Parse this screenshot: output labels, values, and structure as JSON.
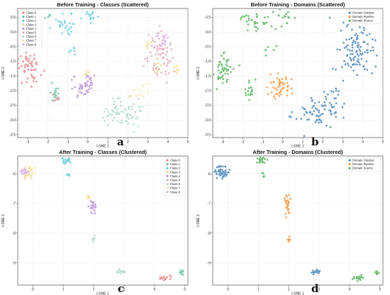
{
  "colors": {
    "classes": [
      "#e8787a",
      "#4fbfa0",
      "#52c7d6",
      "#f3d27a",
      "#b98bd6",
      "#e3a3b3",
      "#a7d8c8",
      "#f7e28f",
      "#cfa6e6"
    ],
    "domains": [
      "#3a7eb5",
      "#f28e2b",
      "#4caf50"
    ]
  },
  "figure_labels": [
    "a",
    "b",
    "c",
    "d"
  ],
  "chart_data": [
    {
      "type": "scatter",
      "title": "Before Training - Classes (Scattered)",
      "xlabel": "t-SNE 1",
      "ylabel": "t-SNE 2",
      "xlim": [
        -3.5,
        5
      ],
      "ylim": [
        -3.6,
        0.8
      ],
      "xticks": [
        -3,
        -2,
        -1,
        0,
        1,
        2,
        3,
        4,
        5
      ],
      "yticks": [
        0.5,
        0.0,
        -0.5,
        -1.0,
        -1.5,
        -2.0,
        -2.5,
        -3.0,
        -3.5
      ],
      "ytick_labels": [
        "0.5",
        "0.0",
        "-0.5",
        "-1.0",
        "-1.5",
        "-2.0",
        "-2.5",
        "-3.0",
        "-3.5"
      ],
      "grid": true,
      "legend_position": "top-left",
      "palette": "classes",
      "series": [
        {
          "name": "Class 0",
          "clusters": [
            {
              "cx": -2.9,
              "cy": -1.25,
              "sx": 0.28,
              "sy": 0.28,
              "n": 55
            },
            {
              "cx": -1.6,
              "cy": -2.2,
              "sx": 0.08,
              "sy": 0.15,
              "n": 8
            }
          ]
        },
        {
          "name": "Class 1",
          "clusters": [
            {
              "cx": -1.65,
              "cy": -2.0,
              "sx": 0.12,
              "sy": 0.18,
              "n": 15
            },
            {
              "cx": -2.0,
              "cy": 0.55,
              "sx": 0.1,
              "sy": 0.06,
              "n": 5
            }
          ]
        },
        {
          "name": "Class 2",
          "clusters": [
            {
              "cx": -1.1,
              "cy": 0.3,
              "sx": 0.35,
              "sy": 0.15,
              "n": 28
            },
            {
              "cx": 0.1,
              "cy": 0.55,
              "sx": 0.2,
              "sy": 0.1,
              "n": 14
            },
            {
              "cx": -0.75,
              "cy": -0.55,
              "sx": 0.15,
              "sy": 0.12,
              "n": 6
            }
          ]
        },
        {
          "name": "Class 3",
          "clusters": [
            {
              "cx": -0.05,
              "cy": -1.4,
              "sx": 0.08,
              "sy": 0.06,
              "n": 5
            },
            {
              "cx": 3.0,
              "cy": -0.45,
              "sx": 0.1,
              "sy": 0.12,
              "n": 6
            },
            {
              "cx": 3.5,
              "cy": -1.2,
              "sx": 0.15,
              "sy": 0.15,
              "n": 9
            },
            {
              "cx": 4.45,
              "cy": -1.3,
              "sx": 0.12,
              "sy": 0.1,
              "n": 6
            }
          ]
        },
        {
          "name": "Class 4",
          "clusters": [
            {
              "cx": -0.2,
              "cy": -1.85,
              "sx": 0.25,
              "sy": 0.22,
              "n": 45
            },
            {
              "cx": 0.2,
              "cy": -1.6,
              "sx": 0.1,
              "sy": 0.12,
              "n": 6
            }
          ]
        },
        {
          "name": "Class 5",
          "clusters": [
            {
              "cx": 3.6,
              "cy": -0.75,
              "sx": 0.35,
              "sy": 0.4,
              "n": 70
            }
          ]
        },
        {
          "name": "Class 6",
          "clusters": [
            {
              "cx": 1.7,
              "cy": -2.75,
              "sx": 0.5,
              "sy": 0.25,
              "n": 75
            }
          ]
        },
        {
          "name": "Class 7",
          "clusters": [
            {
              "cx": 2.3,
              "cy": -2.2,
              "sx": 0.1,
              "sy": 0.1,
              "n": 6
            },
            {
              "cx": 2.8,
              "cy": -1.9,
              "sx": 0.12,
              "sy": 0.1,
              "n": 6
            }
          ]
        },
        {
          "name": "Class 8",
          "clusters": [
            {
              "cx": 3.8,
              "cy": -0.2,
              "sx": 0.2,
              "sy": 0.2,
              "n": 15
            }
          ]
        }
      ]
    },
    {
      "type": "scatter",
      "title": "Before Training - Domains (Scattered)",
      "xlabel": "t-SNE 1",
      "ylabel": "t-SNE 2",
      "xlim": [
        -3.5,
        5
      ],
      "ylim": [
        -3.6,
        0.8
      ],
      "xticks": [
        -3,
        -2,
        -1,
        0,
        1,
        2,
        3,
        4,
        5
      ],
      "yticks": [
        0.5,
        0.0,
        -0.5,
        -1.0,
        -1.5,
        -2.0,
        -2.5,
        -3.0,
        -3.5
      ],
      "ytick_labels": [
        "0.5",
        "0.0",
        "-0.5",
        "-1.0",
        "-1.5",
        "-2.0",
        "-2.5",
        "-3.0",
        "-3.5"
      ],
      "grid": true,
      "legend_position": "top-right",
      "palette": "domains",
      "series": [
        {
          "name": "Domain Outdoor",
          "clusters": [
            {
              "cx": 3.6,
              "cy": -0.7,
              "sx": 0.45,
              "sy": 0.45,
              "n": 110
            },
            {
              "cx": 1.7,
              "cy": -2.75,
              "sx": 0.5,
              "sy": 0.25,
              "n": 75
            },
            {
              "cx": 2.5,
              "cy": -2.1,
              "sx": 0.3,
              "sy": 0.15,
              "n": 12
            }
          ]
        },
        {
          "name": "Domain Pipeline",
          "clusters": [
            {
              "cx": -0.1,
              "cy": -1.8,
              "sx": 0.3,
              "sy": 0.3,
              "n": 50
            }
          ]
        },
        {
          "name": "Domain Source",
          "clusters": [
            {
              "cx": -2.9,
              "cy": -1.25,
              "sx": 0.28,
              "sy": 0.28,
              "n": 50
            },
            {
              "cx": -1.65,
              "cy": -2.0,
              "sx": 0.12,
              "sy": 0.18,
              "n": 18
            },
            {
              "cx": -1.2,
              "cy": 0.3,
              "sx": 0.4,
              "sy": 0.15,
              "n": 30
            },
            {
              "cx": 0.1,
              "cy": 0.5,
              "sx": 0.2,
              "sy": 0.12,
              "n": 15
            },
            {
              "cx": -1.9,
              "cy": 0.55,
              "sx": 0.1,
              "sy": 0.06,
              "n": 6
            },
            {
              "cx": -0.75,
              "cy": -0.55,
              "sx": 0.15,
              "sy": 0.12,
              "n": 6
            }
          ]
        }
      ]
    },
    {
      "type": "scatter",
      "title": "After Training - Classes (Clustered)",
      "xlabel": "t-SNE 1",
      "ylabel": "t-SNE 2",
      "xlim": [
        -0.5,
        5.1
      ],
      "ylim": [
        -9.75,
        -5.4
      ],
      "xticks": [
        0,
        1,
        2,
        3,
        4,
        5
      ],
      "yticks": [
        -6,
        -7,
        -8,
        -9
      ],
      "ytick_labels": [
        "-6",
        "-7",
        "-8",
        "-9"
      ],
      "grid": true,
      "legend_position": "top-right",
      "palette": "classes",
      "series": [
        {
          "name": "Class 0",
          "clusters": [
            {
              "cx": 4.3,
              "cy": -9.5,
              "sx": 0.1,
              "sy": 0.04,
              "n": 25
            }
          ]
        },
        {
          "name": "Class 1",
          "clusters": [
            {
              "cx": 4.9,
              "cy": -9.33,
              "sx": 0.04,
              "sy": 0.04,
              "n": 10
            }
          ]
        },
        {
          "name": "Class 2",
          "clusters": [
            {
              "cx": 1.1,
              "cy": -5.55,
              "sx": 0.08,
              "sy": 0.06,
              "n": 22
            },
            {
              "cx": 1.15,
              "cy": -6.0,
              "sx": 0.03,
              "sy": 0.05,
              "n": 6
            }
          ]
        },
        {
          "name": "Class 3",
          "clusters": [
            {
              "cx": -0.2,
              "cy": -6.1,
              "sx": 0.08,
              "sy": 0.05,
              "n": 12
            },
            {
              "cx": 1.85,
              "cy": -6.8,
              "sx": 0.04,
              "sy": 0.04,
              "n": 6
            }
          ]
        },
        {
          "name": "Class 4",
          "clusters": [
            {
              "cx": 1.95,
              "cy": -7.1,
              "sx": 0.05,
              "sy": 0.1,
              "n": 18
            }
          ]
        },
        {
          "name": "Class 5",
          "clusters": [
            {
              "cx": -0.25,
              "cy": -5.9,
              "sx": 0.08,
              "sy": 0.06,
              "n": 14
            }
          ]
        },
        {
          "name": "Class 6",
          "clusters": [
            {
              "cx": 2.9,
              "cy": -9.3,
              "sx": 0.1,
              "sy": 0.04,
              "n": 22
            },
            {
              "cx": 2.0,
              "cy": -8.2,
              "sx": 0.03,
              "sy": 0.04,
              "n": 7
            }
          ]
        },
        {
          "name": "Class 7",
          "clusters": [
            {
              "cx": -0.05,
              "cy": -5.85,
              "sx": 0.08,
              "sy": 0.08,
              "n": 14
            }
          ]
        },
        {
          "name": "Class 8",
          "clusters": [
            {
              "cx": -0.3,
              "cy": -5.95,
              "sx": 0.08,
              "sy": 0.06,
              "n": 14
            },
            {
              "cx": 2.0,
              "cy": -7.3,
              "sx": 0.04,
              "sy": 0.08,
              "n": 8
            }
          ]
        }
      ]
    },
    {
      "type": "scatter",
      "title": "After Training - Domains (Clustered)",
      "xlabel": "t-SNE 1",
      "ylabel": "t-SNE 2",
      "xlim": [
        -0.5,
        5.1
      ],
      "ylim": [
        -9.75,
        -5.4
      ],
      "xticks": [
        0,
        1,
        2,
        3,
        4,
        5
      ],
      "yticks": [
        -6,
        -7,
        -8,
        -9
      ],
      "ytick_labels": [
        "-6",
        "-7",
        "-8",
        "-9"
      ],
      "grid": true,
      "legend_position": "top-right",
      "palette": "domains",
      "series": [
        {
          "name": "Domain Outdoor",
          "clusters": [
            {
              "cx": -0.2,
              "cy": -5.95,
              "sx": 0.12,
              "sy": 0.1,
              "n": 55
            },
            {
              "cx": 2.9,
              "cy": -9.3,
              "sx": 0.1,
              "sy": 0.04,
              "n": 22
            }
          ]
        },
        {
          "name": "Domain Pipeline",
          "clusters": [
            {
              "cx": 1.95,
              "cy": -7.0,
              "sx": 0.05,
              "sy": 0.18,
              "n": 28
            },
            {
              "cx": 2.0,
              "cy": -8.2,
              "sx": 0.03,
              "sy": 0.04,
              "n": 7
            }
          ]
        },
        {
          "name": "Domain Source",
          "clusters": [
            {
              "cx": 1.1,
              "cy": -5.55,
              "sx": 0.08,
              "sy": 0.06,
              "n": 22
            },
            {
              "cx": 1.15,
              "cy": -6.0,
              "sx": 0.03,
              "sy": 0.05,
              "n": 6
            },
            {
              "cx": 4.3,
              "cy": -9.5,
              "sx": 0.1,
              "sy": 0.04,
              "n": 25
            },
            {
              "cx": 4.9,
              "cy": -9.33,
              "sx": 0.04,
              "sy": 0.04,
              "n": 10
            }
          ]
        }
      ]
    }
  ]
}
